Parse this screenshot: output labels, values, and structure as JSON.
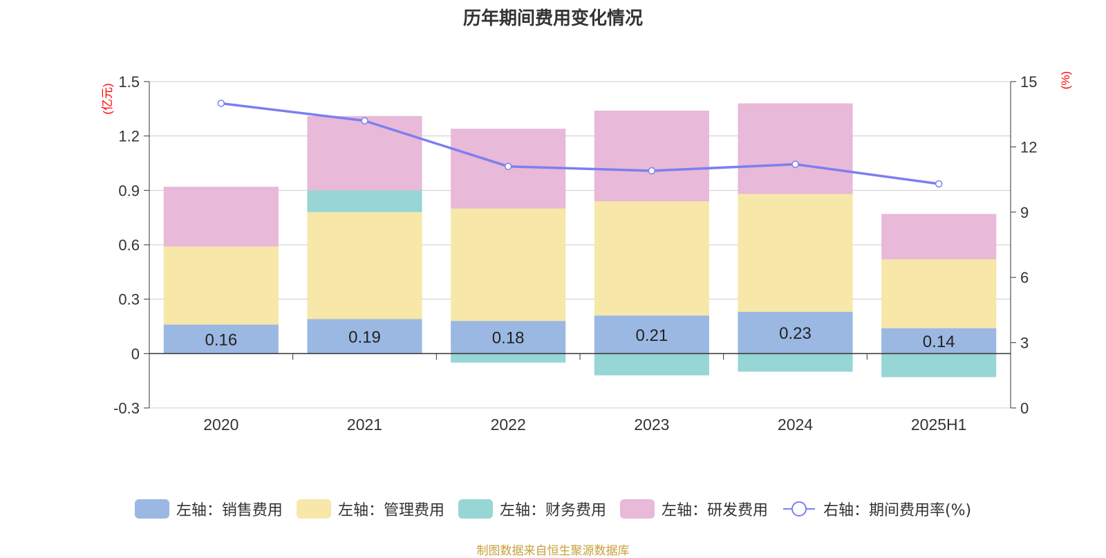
{
  "chart_data": {
    "type": "bar",
    "title": "历年期间费用变化情况",
    "categories": [
      "2020",
      "2021",
      "2022",
      "2023",
      "2024",
      "2025H1"
    ],
    "left_axis": {
      "unit_label": "(亿元)",
      "ylim": [
        -0.3,
        1.5
      ],
      "ticks": [
        "-0.3",
        "0",
        "0.3",
        "0.6",
        "0.9",
        "1.2",
        "1.5"
      ]
    },
    "right_axis": {
      "unit_label": "(%)",
      "ylim": [
        0,
        15
      ],
      "ticks": [
        "0",
        "3",
        "6",
        "9",
        "12",
        "15"
      ]
    },
    "grid": true,
    "legend_position": "bottom",
    "series": [
      {
        "name": "左轴：销售费用",
        "type": "bar",
        "color": "#9bb8e3",
        "values": [
          0.16,
          0.19,
          0.18,
          0.21,
          0.23,
          0.14
        ],
        "labels": [
          "0.16",
          "0.19",
          "0.18",
          "0.21",
          "0.23",
          "0.14"
        ]
      },
      {
        "name": "左轴：管理费用",
        "type": "bar",
        "color": "#f7e7a8",
        "values": [
          0.43,
          0.59,
          0.62,
          0.63,
          0.65,
          0.38
        ]
      },
      {
        "name": "左轴：财务费用",
        "type": "bar",
        "color": "#98d5d5",
        "values": [
          0.0,
          0.12,
          -0.05,
          -0.12,
          -0.1,
          -0.13
        ]
      },
      {
        "name": "左轴：研发费用",
        "type": "bar",
        "color": "#e8b9d8",
        "values": [
          0.33,
          0.41,
          0.44,
          0.5,
          0.5,
          0.25
        ]
      },
      {
        "name": "右轴：期间费用率(%)",
        "type": "line",
        "axis": "right",
        "color": "#7b7ff0",
        "values": [
          14.0,
          13.2,
          11.1,
          10.9,
          11.2,
          10.3
        ]
      }
    ]
  },
  "source_note": "制图数据来自恒生聚源数据库"
}
